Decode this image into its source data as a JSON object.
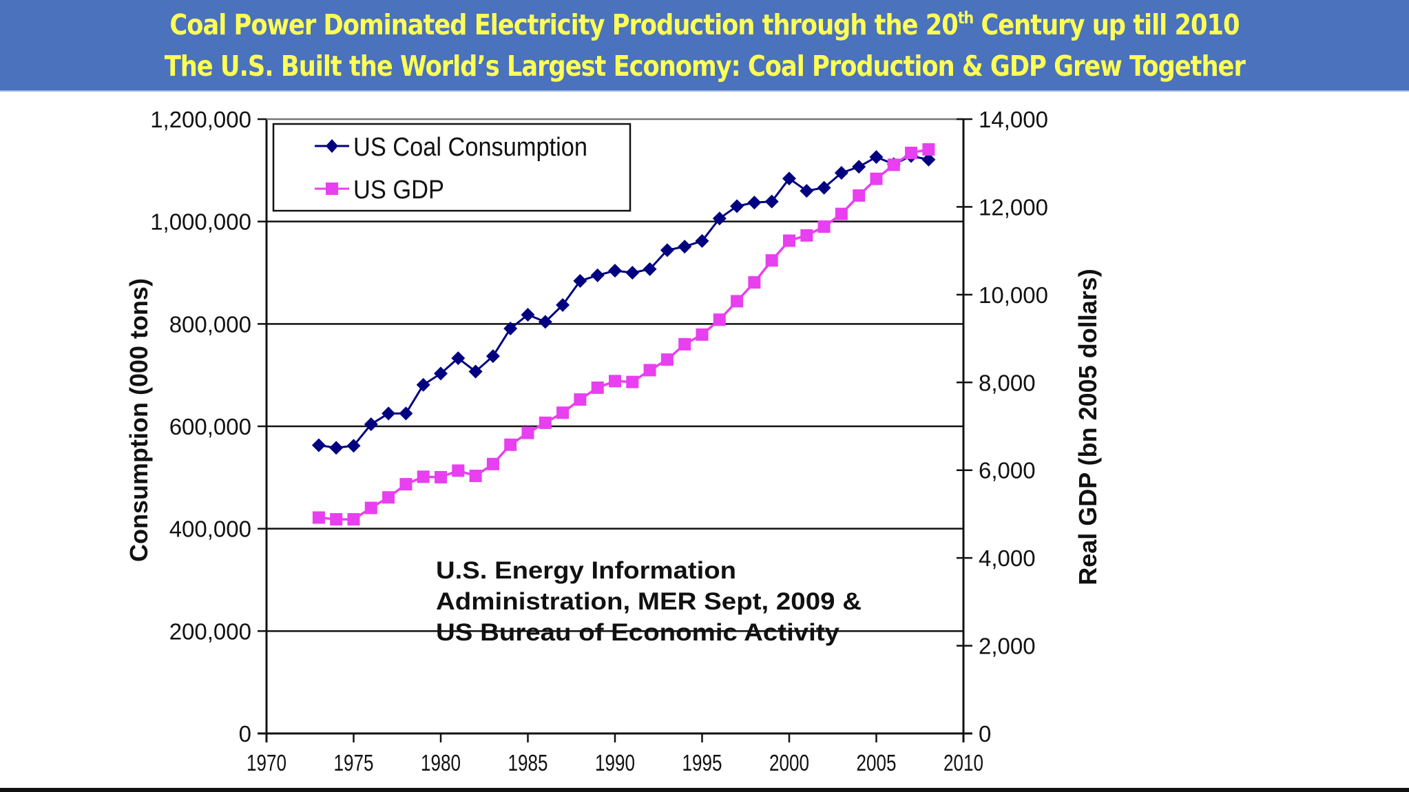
{
  "header": {
    "line1_before_sup": "Coal Power Dominated Electricity Production through the 20",
    "line1_sup": "th",
    "line1_after_sup": " Century up till 2010",
    "line2": "The U.S. Built the World’s Largest Economy: Coal Production & GDP Grew Together",
    "background_color": "#4a72bd",
    "text_color": "#ffff55"
  },
  "chart_data": {
    "type": "line",
    "title": "",
    "xlabel": "",
    "ylabel": "Consumption (000 tons)",
    "y2label": "Real GDP (bn 2005 dollars)",
    "xlim": [
      1970,
      2010
    ],
    "ylim": [
      0,
      1200000
    ],
    "y2lim": [
      0,
      14000
    ],
    "grid": true,
    "legend_position": "top-left",
    "x_ticks": [
      "1970",
      "1975",
      "1980",
      "1985",
      "1990",
      "1995",
      "2000",
      "2005",
      "2010"
    ],
    "y_ticks": [
      "0",
      "200,000",
      "400,000",
      "600,000",
      "800,000",
      "1,000,000",
      "1,200,000"
    ],
    "y2_ticks": [
      "0",
      "2,000",
      "4,000",
      "6,000",
      "8,000",
      "10,000",
      "12,000",
      "14,000"
    ],
    "x": [
      1973,
      1974,
      1975,
      1976,
      1977,
      1978,
      1979,
      1980,
      1981,
      1982,
      1983,
      1984,
      1985,
      1986,
      1987,
      1988,
      1989,
      1990,
      1991,
      1992,
      1993,
      1994,
      1995,
      1996,
      1997,
      1998,
      1999,
      2000,
      2001,
      2002,
      2003,
      2004,
      2005,
      2006,
      2007,
      2008
    ],
    "series": [
      {
        "name": "US Coal Consumption",
        "axis": "left",
        "color": "#000080",
        "marker": "diamond",
        "values": [
          563000,
          558000,
          562000,
          604000,
          625000,
          625000,
          681000,
          703000,
          733000,
          707000,
          737000,
          791000,
          818000,
          804000,
          837000,
          884000,
          895000,
          904000,
          900000,
          907000,
          944000,
          951000,
          962000,
          1006000,
          1030000,
          1037000,
          1039000,
          1084000,
          1060000,
          1066000,
          1095000,
          1107000,
          1126000,
          1112000,
          1128000,
          1121000
        ]
      },
      {
        "name": "US GDP",
        "axis": "right",
        "color": "#e83ff0",
        "marker": "square",
        "values": [
          4920,
          4880,
          4880,
          5140,
          5380,
          5680,
          5850,
          5840,
          5990,
          5870,
          6140,
          6580,
          6850,
          7080,
          7310,
          7610,
          7880,
          8030,
          8010,
          8280,
          8520,
          8870,
          9090,
          9430,
          9850,
          10280,
          10780,
          11230,
          11350,
          11550,
          11840,
          12260,
          12640,
          12960,
          13230,
          13310
        ]
      }
    ],
    "annotation": [
      "U.S. Energy Information",
      "Administration, MER Sept, 2009 &",
      "US Bureau of Economic Activity"
    ]
  }
}
